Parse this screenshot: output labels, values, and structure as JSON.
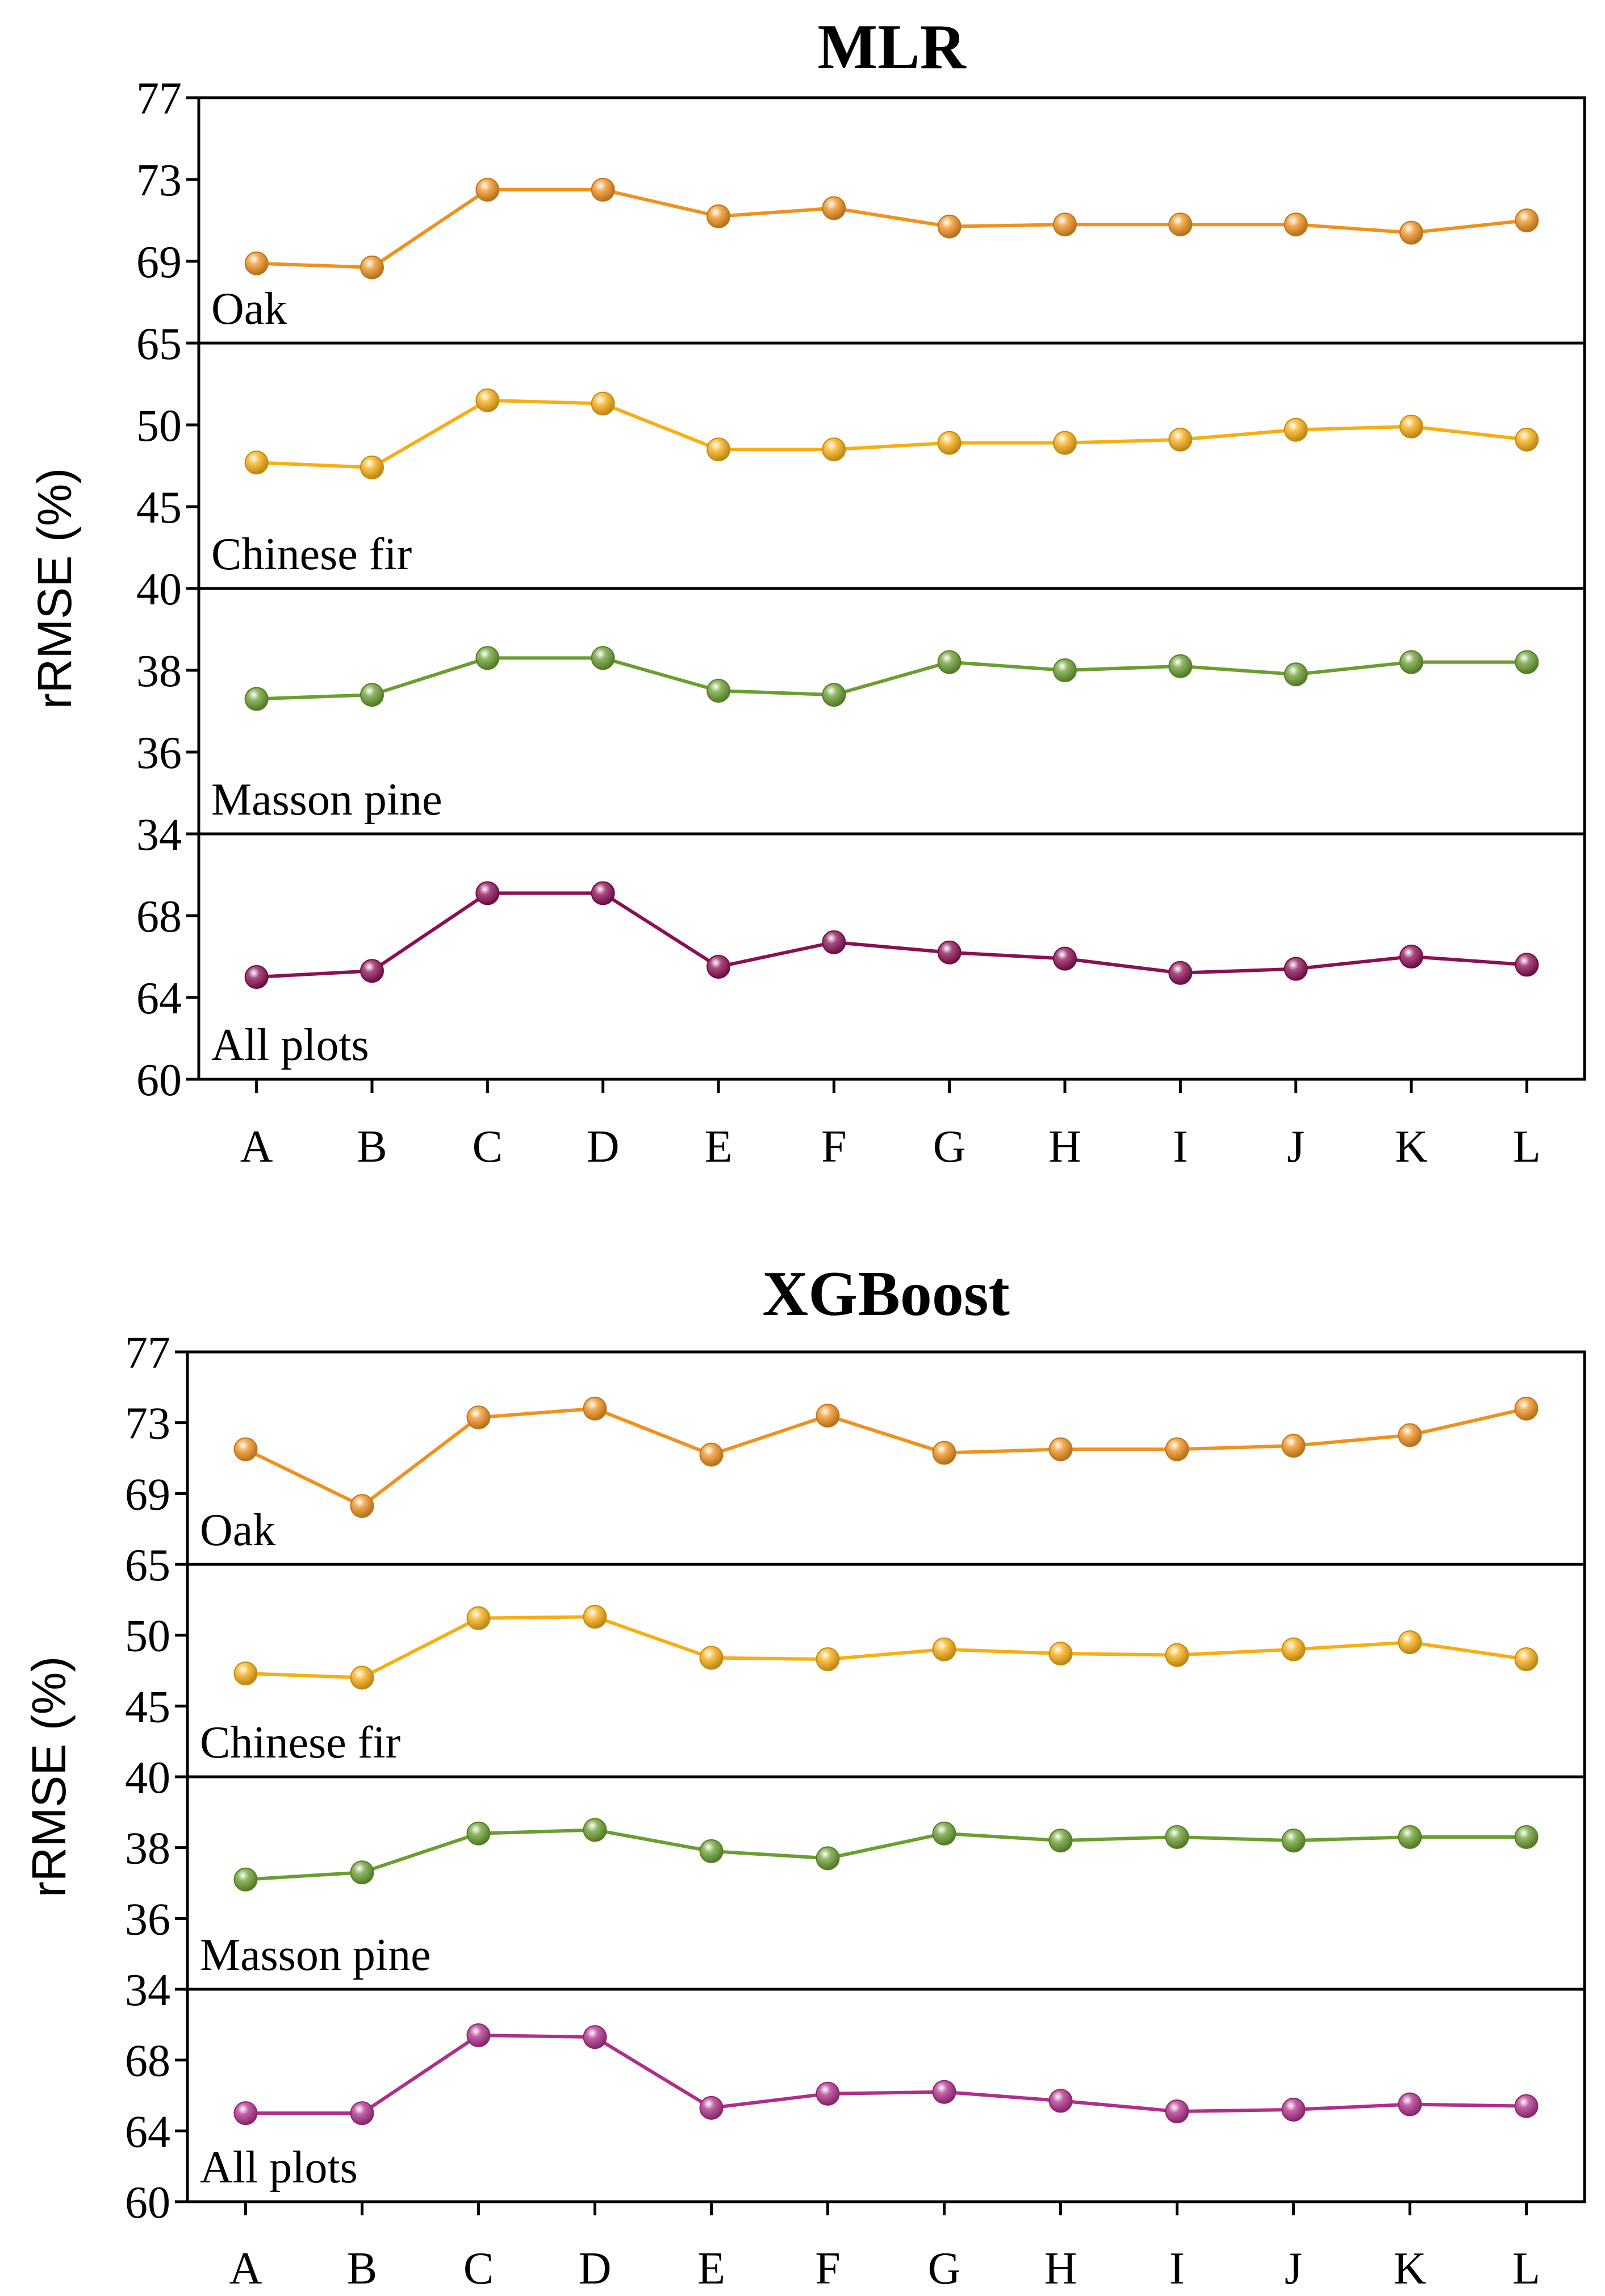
{
  "chart_data": [
    {
      "type": "line",
      "title": "MLR",
      "ylabel": "rRMSE (%)",
      "xlabel": "",
      "categories": [
        "A",
        "B",
        "C",
        "D",
        "E",
        "F",
        "G",
        "H",
        "I",
        "J",
        "K",
        "L"
      ],
      "panels": [
        {
          "name": "Oak",
          "ylim": [
            65,
            77
          ],
          "yticks": [
            65,
            69,
            73,
            77
          ],
          "color": "#F0911E",
          "values": [
            68.9,
            68.7,
            72.5,
            72.5,
            71.2,
            71.6,
            70.7,
            70.8,
            70.8,
            70.8,
            70.4,
            71.0
          ]
        },
        {
          "name": "Chinese fir",
          "ylim": [
            40,
            55
          ],
          "yticks": [
            40,
            45,
            50
          ],
          "color": "#F8AE12",
          "values": [
            47.7,
            47.4,
            51.5,
            51.3,
            48.5,
            48.5,
            48.9,
            48.9,
            49.1,
            49.7,
            49.9,
            49.1
          ]
        },
        {
          "name": "Masson pine",
          "ylim": [
            34,
            40
          ],
          "yticks": [
            34,
            36,
            38
          ],
          "color": "#6A9E2E",
          "values": [
            37.3,
            37.4,
            38.3,
            38.3,
            37.5,
            37.4,
            38.2,
            38.0,
            38.1,
            37.9,
            38.2,
            38.2
          ]
        },
        {
          "name": "All plots",
          "ylim": [
            60,
            72
          ],
          "yticks": [
            60,
            64,
            68
          ],
          "color": "#8C0F55",
          "values": [
            65.0,
            65.3,
            69.1,
            69.1,
            65.5,
            66.7,
            66.2,
            65.9,
            65.2,
            65.4,
            66.0,
            65.6
          ]
        }
      ],
      "grid": false,
      "legend": "none"
    },
    {
      "type": "line",
      "title": "XGBoost",
      "ylabel": "rRMSE (%)",
      "xlabel": "",
      "categories": [
        "A",
        "B",
        "C",
        "D",
        "E",
        "F",
        "G",
        "H",
        "I",
        "J",
        "K",
        "L"
      ],
      "panels": [
        {
          "name": "Oak",
          "ylim": [
            65,
            77
          ],
          "yticks": [
            65,
            69,
            73,
            77
          ],
          "color": "#F0911E",
          "values": [
            71.5,
            68.3,
            73.3,
            73.8,
            71.2,
            73.4,
            71.3,
            71.5,
            71.5,
            71.7,
            72.3,
            73.8
          ]
        },
        {
          "name": "Chinese fir",
          "ylim": [
            40,
            55
          ],
          "yticks": [
            40,
            45,
            50
          ],
          "color": "#F8AE12",
          "values": [
            47.3,
            47.0,
            51.2,
            51.3,
            48.4,
            48.3,
            49.0,
            48.7,
            48.6,
            49.0,
            49.5,
            48.3
          ]
        },
        {
          "name": "Masson pine",
          "ylim": [
            34,
            40
          ],
          "yticks": [
            34,
            36,
            38
          ],
          "color": "#6A9E2E",
          "values": [
            37.1,
            37.3,
            38.4,
            38.5,
            37.9,
            37.7,
            38.4,
            38.2,
            38.3,
            38.2,
            38.3,
            38.3
          ]
        },
        {
          "name": "All plots",
          "ylim": [
            60,
            72
          ],
          "yticks": [
            60,
            64,
            68
          ],
          "color": "#B02E8A",
          "values": [
            65.0,
            65.0,
            69.4,
            69.3,
            65.3,
            66.1,
            66.2,
            65.7,
            65.1,
            65.2,
            65.5,
            65.4
          ]
        }
      ],
      "grid": false,
      "legend": "none"
    }
  ]
}
